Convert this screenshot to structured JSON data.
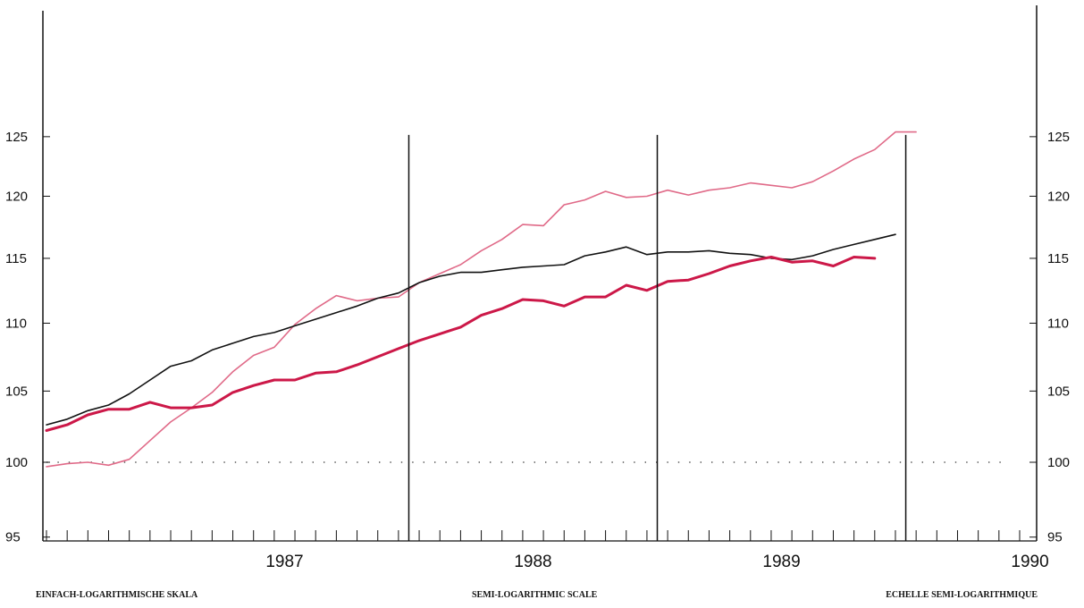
{
  "footer": {
    "left": "EINFACH-LOGARITHMISCHE SKALA",
    "center": "SEMI-LOGARITHMIC SCALE",
    "right": "ECHELLE SEMI-LOGARITHMIQUE"
  },
  "chart_data": {
    "type": "line",
    "title": "",
    "xlabel": "",
    "ylabel": "",
    "y_scale": "log",
    "ylim": [
      95,
      132
    ],
    "yticks": [
      95,
      100,
      105,
      110,
      115,
      120,
      125
    ],
    "x_range": [
      "1986-07",
      "1990-07"
    ],
    "year_labels": [
      "1987",
      "1988",
      "1989",
      "1990"
    ],
    "year_dividers": [
      "1988-01",
      "1989-01",
      "1990-01"
    ],
    "reference_line": 100,
    "grid": false,
    "legend": "none",
    "series": [
      {
        "color": "#e06a88",
        "style": "thin",
        "x": [
          "1986-07",
          "1986-08",
          "1986-09",
          "1986-10",
          "1986-11",
          "1986-12",
          "1987-01",
          "1987-02",
          "1987-03",
          "1987-04",
          "1987-05",
          "1987-06",
          "1987-07",
          "1987-08",
          "1987-09",
          "1987-10",
          "1987-11",
          "1987-12",
          "1988-01",
          "1988-02",
          "1988-03",
          "1988-04",
          "1988-05",
          "1988-06",
          "1988-07",
          "1988-08",
          "1988-09",
          "1988-10",
          "1988-11",
          "1988-12",
          "1989-01",
          "1989-02",
          "1989-03",
          "1989-04",
          "1989-05",
          "1989-06",
          "1989-07",
          "1989-08",
          "1989-09",
          "1989-10",
          "1989-11",
          "1989-12",
          "1990-01"
        ],
        "values": [
          99.7,
          99.9,
          100.0,
          99.8,
          100.2,
          101.5,
          102.8,
          103.8,
          104.9,
          106.4,
          107.6,
          108.2,
          109.9,
          111.1,
          112.1,
          111.7,
          111.9,
          112.0,
          113.1,
          113.8,
          114.5,
          115.6,
          116.5,
          117.7,
          117.6,
          119.3,
          119.7,
          120.4,
          119.9,
          120.0,
          120.5,
          120.1,
          120.5,
          120.7,
          121.1,
          120.9,
          120.7,
          121.2,
          122.1,
          123.1,
          123.9,
          125.4,
          125.4
        ]
      },
      {
        "color": "#111111",
        "style": "thin",
        "x": [
          "1986-07",
          "1986-08",
          "1986-09",
          "1986-10",
          "1986-11",
          "1986-12",
          "1987-01",
          "1987-02",
          "1987-03",
          "1987-04",
          "1987-05",
          "1987-06",
          "1987-07",
          "1987-08",
          "1987-09",
          "1987-10",
          "1987-11",
          "1987-12",
          "1988-01",
          "1988-02",
          "1988-03",
          "1988-04",
          "1988-05",
          "1988-06",
          "1988-07",
          "1988-08",
          "1988-09",
          "1988-10",
          "1988-11",
          "1988-12",
          "1989-01",
          "1989-02",
          "1989-03",
          "1989-04",
          "1989-05",
          "1989-06",
          "1989-07",
          "1989-08",
          "1989-09",
          "1989-10",
          "1989-11",
          "1989-12"
        ],
        "values": [
          102.6,
          103.0,
          103.6,
          104.0,
          104.8,
          105.8,
          106.8,
          107.2,
          108.0,
          108.5,
          109.0,
          109.3,
          109.8,
          110.3,
          110.8,
          111.3,
          111.9,
          112.3,
          113.1,
          113.6,
          113.9,
          113.9,
          114.1,
          114.3,
          114.4,
          114.5,
          115.2,
          115.5,
          115.9,
          115.3,
          115.5,
          115.5,
          115.6,
          115.4,
          115.3,
          115.0,
          114.9,
          115.2,
          115.7,
          116.1,
          116.5,
          116.9
        ]
      },
      {
        "color": "#cc1848",
        "style": "thick",
        "x": [
          "1986-07",
          "1986-08",
          "1986-09",
          "1986-10",
          "1986-11",
          "1986-12",
          "1987-01",
          "1987-02",
          "1987-03",
          "1987-04",
          "1987-05",
          "1987-06",
          "1987-07",
          "1987-08",
          "1987-09",
          "1987-10",
          "1987-11",
          "1987-12",
          "1988-01",
          "1988-02",
          "1988-03",
          "1988-04",
          "1988-05",
          "1988-06",
          "1988-07",
          "1988-08",
          "1988-09",
          "1988-10",
          "1988-11",
          "1988-12",
          "1989-01",
          "1989-02",
          "1989-03",
          "1989-04",
          "1989-05",
          "1989-06",
          "1989-07",
          "1989-08",
          "1989-09",
          "1989-10",
          "1989-11"
        ],
        "values": [
          102.2,
          102.6,
          103.3,
          103.7,
          103.7,
          104.2,
          103.8,
          103.8,
          104.0,
          104.9,
          105.4,
          105.8,
          105.8,
          106.3,
          106.4,
          106.9,
          107.5,
          108.1,
          108.7,
          109.2,
          109.7,
          110.6,
          111.1,
          111.8,
          111.7,
          111.3,
          112.0,
          112.0,
          112.9,
          112.5,
          113.2,
          113.3,
          113.8,
          114.4,
          114.8,
          115.1,
          114.7,
          114.8,
          114.4,
          115.1,
          115.0
        ]
      }
    ]
  }
}
